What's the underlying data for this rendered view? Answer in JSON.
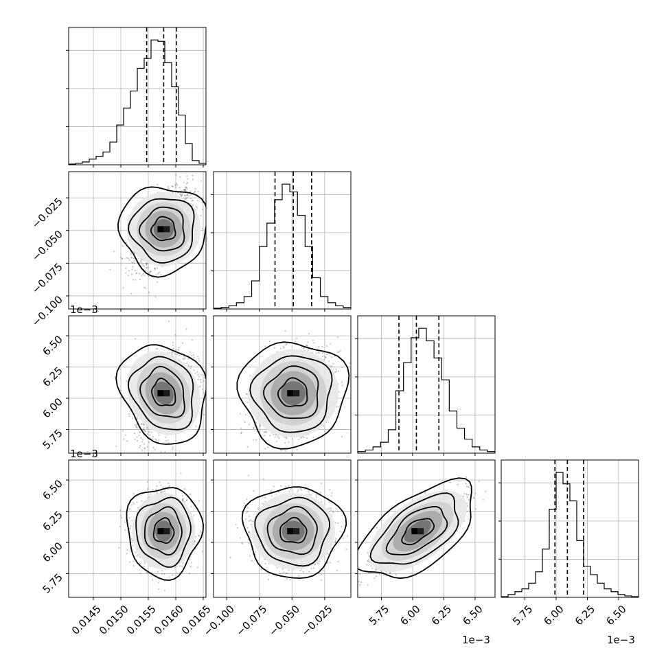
{
  "chart_data": {
    "type": "corner",
    "parameters": 4,
    "axis_tick_labels": {
      "p0_x": [
        "0.0145",
        "0.0150",
        "0.0155",
        "0.0160",
        "0.0165"
      ],
      "p1_x": [
        "−0.100",
        "−0.075",
        "−0.050",
        "−0.025"
      ],
      "p1_y": [
        "−0.025",
        "−0.050",
        "−0.075",
        "−0.100"
      ],
      "p2_x": [
        "5.75",
        "6.00",
        "6.25",
        "6.50"
      ],
      "p2_y": [
        "6.50",
        "6.25",
        "6.00",
        "5.75"
      ],
      "p3_x": [
        "5.75",
        "6.00",
        "6.25",
        "6.50"
      ],
      "p3_y": [
        "6.50",
        "6.25",
        "6.00",
        "5.75"
      ]
    },
    "offset_labels": {
      "row2_y": "1e−3",
      "row3_y": "1e−3",
      "col2_x": "1e−3",
      "col3_x": "1e−3"
    },
    "ranges": {
      "p0": [
        0.01405,
        0.01655
      ],
      "p1": [
        -0.11,
        -0.005
      ],
      "p2": [
        5.56,
        6.66
      ],
      "p3": [
        5.56,
        6.66
      ]
    },
    "histograms": [
      {
        "param": "p0",
        "counts": [
          0.5,
          1,
          2,
          4,
          6,
          9,
          16,
          28,
          40,
          52,
          68,
          75,
          88,
          87,
          72,
          55,
          35,
          15,
          3,
          1
        ],
        "quantiles": [
          0.01547,
          0.01578,
          0.01601
        ]
      },
      {
        "param": "p1",
        "counts": [
          0.5,
          1,
          2,
          4,
          8,
          18,
          40,
          55,
          70,
          80,
          75,
          60,
          40,
          20,
          8,
          4,
          2,
          1
        ],
        "quantiles": [
          -0.063,
          -0.049,
          -0.035
        ]
      },
      {
        "param": "p2",
        "counts": [
          1,
          2,
          4,
          7,
          15,
          40,
          58,
          74,
          80,
          72,
          61,
          47,
          27,
          16,
          9,
          4,
          2,
          1
        ],
        "quantiles": [
          5.89,
          6.03,
          6.21
        ]
      },
      {
        "param": "p3",
        "counts": [
          0.5,
          2,
          4,
          6,
          10,
          18,
          34,
          62,
          88,
          80,
          68,
          40,
          22,
          16,
          10,
          6,
          4,
          2,
          1,
          0.5
        ],
        "quantiles": [
          5.99,
          6.09,
          6.22
        ]
      }
    ],
    "grid": true
  },
  "colors": {
    "line": "#000000",
    "grid": "#b0b0b0",
    "scatter": "#555555"
  }
}
